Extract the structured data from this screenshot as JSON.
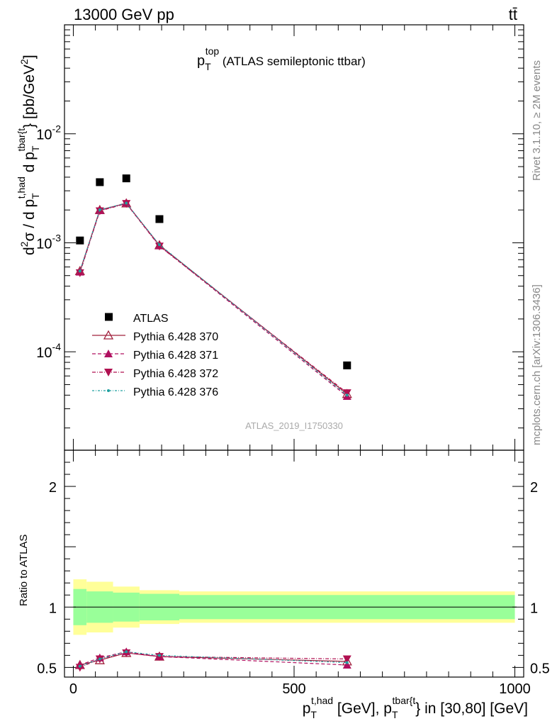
{
  "header": {
    "left": "13000 GeV pp",
    "right": "tt̄"
  },
  "side": {
    "rivet": "Rivet 3.1.10, ≥ 2M events",
    "mcplots": "mcplots.cern.ch [arXiv:1306.3436]"
  },
  "chart_data": {
    "type": "scatter",
    "title_main": "p",
    "title_sub": "T",
    "title_sup": "top",
    "title_rest": " (ATLAS semileptonic ttbar)",
    "analysis_label": "ATLAS_2019_I1750330",
    "ylabel": "d²σ / d p_T^{t,had} d p_T^{tbar{t}} [pb/GeV²]",
    "xlabel": "p_T^{t,had} [GeV], p_T^{tbar{t}} in [30,80] [GeV]",
    "ratio_ylabel": "Ratio to ATLAS",
    "xlim": [
      -20,
      1020
    ],
    "ylim_main": [
      1.25e-05,
      0.1
    ],
    "ylog": true,
    "ylim_ratio": [
      0.42,
      2.3
    ],
    "main_tick_labels": {
      "1e-4": "10^-4",
      "1e-3": "10^-3",
      "1e-2": "10^-2"
    },
    "x_tick_labels": [
      "0",
      "500",
      "1000"
    ],
    "ratio_tick_labels": [
      "0.5",
      "1",
      "2"
    ],
    "x": [
      15,
      60,
      120,
      195,
      620
    ],
    "bins": [
      [
        0,
        30
      ],
      [
        30,
        90
      ],
      [
        90,
        150
      ],
      [
        150,
        240
      ],
      [
        240,
        1000
      ]
    ],
    "data": {
      "name": "ATLAS",
      "values": [
        0.00105,
        0.0036,
        0.0039,
        0.00165,
        7.5e-05
      ],
      "band_stat": [
        0.15,
        0.13,
        0.12,
        0.11,
        0.1
      ],
      "band_total": [
        0.23,
        0.21,
        0.17,
        0.14,
        0.13
      ]
    },
    "series": [
      {
        "name": "Pythia 6.428 370",
        "color": "#a0203c",
        "dash": "",
        "marker": "triangle-open",
        "values": [
          0.00055,
          0.002,
          0.0023,
          0.00095,
          4.1e-05
        ],
        "ratio": [
          0.52,
          0.56,
          0.62,
          0.59,
          0.55
        ]
      },
      {
        "name": "Pythia 6.428 371",
        "color": "#b01060",
        "dash": "5,3",
        "marker": "triangle-up",
        "values": [
          0.00054,
          0.00198,
          0.00232,
          0.00094,
          3.9e-05
        ],
        "ratio": [
          0.52,
          0.58,
          0.63,
          0.59,
          0.52
        ]
      },
      {
        "name": "Pythia 6.428 372",
        "color": "#b01050",
        "dash": "5,2,1,2",
        "marker": "triangle-down",
        "values": [
          0.00053,
          0.00196,
          0.00229,
          0.00093,
          4.2e-05
        ],
        "ratio": [
          0.5,
          0.57,
          0.62,
          0.59,
          0.57
        ]
      },
      {
        "name": "Pythia 6.428 376",
        "color": "#20a0a0",
        "dash": "3,2,1,2",
        "marker": "dot",
        "values": [
          0.00055,
          0.00201,
          0.00231,
          0.00096,
          4e-05
        ],
        "ratio": [
          0.51,
          0.57,
          0.63,
          0.6,
          0.54
        ]
      }
    ]
  }
}
